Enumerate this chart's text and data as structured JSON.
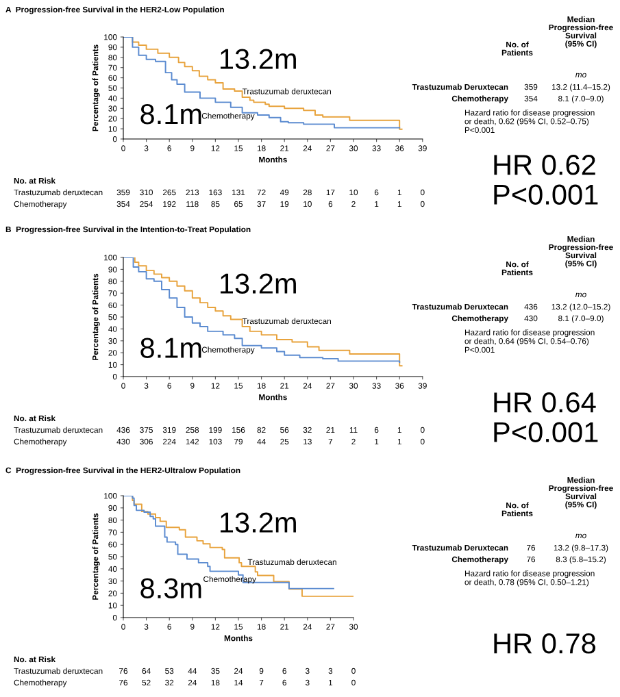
{
  "chart_data": [
    {
      "type": "step",
      "title": "A  Progression-free Survival in the HER2-Low Population",
      "xlabel": "Months",
      "ylabel": "Percentage of Patients",
      "xlim": [
        0,
        39
      ],
      "xticks": [
        0,
        3,
        6,
        9,
        12,
        15,
        18,
        21,
        24,
        27,
        30,
        33,
        36,
        39
      ],
      "ylim": [
        0,
        100
      ],
      "yticks": [
        0,
        10,
        20,
        30,
        40,
        50,
        60,
        70,
        80,
        90,
        100
      ],
      "series": [
        {
          "name": "Trastuzumab deruxtecan",
          "color": "#e8a33d",
          "x": [
            0,
            1.2,
            2,
            3,
            4.5,
            6,
            7.2,
            8,
            9,
            9.9,
            11,
            12,
            13,
            14.5,
            15.5,
            16.5,
            17,
            18.5,
            19,
            21,
            23.5,
            25,
            26,
            29.5,
            36,
            36.3
          ],
          "values": [
            100,
            95,
            92,
            88,
            84,
            80,
            75,
            71,
            67,
            61.5,
            58,
            55,
            49,
            47,
            41,
            38,
            36,
            34,
            32,
            30,
            28,
            23.5,
            21.7,
            18.3,
            9.6,
            9.6
          ]
        },
        {
          "name": "Chemotherapy",
          "color": "#5b8bd0",
          "x": [
            0,
            1.2,
            2,
            3,
            4.2,
            5.5,
            6.3,
            7,
            8,
            10,
            12,
            14,
            15.5,
            17.5,
            19,
            20.5,
            21.5,
            23.5,
            27.5,
            36
          ],
          "values": [
            100,
            90,
            82,
            78,
            76,
            65,
            58,
            53.7,
            46,
            40,
            36,
            31,
            25.7,
            23.5,
            21,
            17,
            16,
            14.5,
            11,
            11
          ]
        }
      ],
      "annotations": [
        "13.2m",
        "8.1m",
        "No. of\nPatients",
        "Median\nProgression-free\nSurvival\n(95% CI)",
        "mo",
        "Trastuzumab Deruxtecan",
        "Chemotherapy",
        "359",
        "354",
        "13.2 (11.4–15.2)",
        "8.1 (7.0–9.0)",
        "Hazard ratio for disease progression\nor death, 0.62 (95% CI, 0.52–0.75)\nP<0.001",
        "No. at Risk",
        "Trastuzumab deruxtecan",
        "Chemotherapy",
        "359 310 265 213 163 131 72 49 28 17 10 6 1 0",
        "354 254 192 118 85 65 37 19 10 6 2 1 1 0",
        "HR 0.62\nP<0.001"
      ]
    },
    {
      "type": "step",
      "title": "B  Progression-free Survival in the Intention-to-Treat Population",
      "xlabel": "Months",
      "ylabel": "Percentage of Patients",
      "xlim": [
        0,
        39
      ],
      "xticks": [
        0,
        3,
        6,
        9,
        12,
        15,
        18,
        21,
        24,
        27,
        30,
        33,
        36,
        39
      ],
      "ylim": [
        0,
        100
      ],
      "yticks": [
        0,
        10,
        20,
        30,
        40,
        50,
        60,
        70,
        80,
        90,
        100
      ],
      "series": [
        {
          "name": "Trastuzumab deruxtecan",
          "color": "#e8a33d",
          "x": [
            0,
            1.5,
            2,
            3,
            4,
            5,
            6,
            7,
            8,
            9,
            10,
            11,
            12,
            13,
            14,
            15.5,
            16.5,
            18,
            20,
            22,
            24,
            25.5,
            29.5,
            36,
            36.3
          ],
          "values": [
            100,
            96,
            93,
            89,
            86,
            83,
            80,
            76,
            72,
            66,
            62,
            58,
            55,
            51,
            48,
            42,
            38,
            35,
            31,
            29,
            25,
            22,
            19,
            9,
            9
          ]
        },
        {
          "name": "Chemotherapy",
          "color": "#5b8bd0",
          "x": [
            0,
            1.3,
            2,
            3,
            4,
            5,
            6,
            7,
            8,
            9,
            10,
            11,
            13,
            14.5,
            15.5,
            18,
            20,
            21,
            23,
            26,
            28,
            36
          ],
          "values": [
            100,
            92,
            88,
            82,
            80,
            73,
            66,
            58,
            50,
            45,
            42,
            38,
            35,
            32,
            26,
            24,
            21,
            18,
            16,
            15,
            13,
            12
          ]
        }
      ],
      "annotations": [
        "13.2m",
        "8.1m",
        "No. of\nPatients",
        "Median\nProgression-free\nSurvival\n(95% CI)",
        "mo",
        "Trastuzumab Deruxtecan",
        "Chemotherapy",
        "436",
        "430",
        "13.2 (12.0–15.2)",
        "8.1 (7.0–9.0)",
        "Hazard ratio for disease progression\nor death, 0.64 (95% CI, 0.54–0.76)\nP<0.001",
        "No. at Risk",
        "Trastuzumab deruxtecan",
        "Chemotherapy",
        "436 375 319 258 199 156 82 56 32 21 11 6 1 0",
        "430 306 224 142 103 79 44 25 13 7 2 1 1 0",
        "HR 0.64\nP<0.001"
      ]
    },
    {
      "type": "step",
      "title": "C  Progression-free Survival in the HER2-Ultralow Population",
      "xlabel": "Months",
      "ylabel": "Percentage of Patients",
      "xlim": [
        0,
        30
      ],
      "xticks": [
        0,
        3,
        6,
        9,
        12,
        15,
        18,
        21,
        24,
        27,
        30
      ],
      "ylim": [
        0,
        100
      ],
      "yticks": [
        0,
        10,
        20,
        30,
        40,
        50,
        60,
        70,
        80,
        90,
        100
      ],
      "series": [
        {
          "name": "Trastuzumab deruxtecan",
          "color": "#e8a33d",
          "x": [
            0,
            1.2,
            1.4,
            2.4,
            3.2,
            4.2,
            4.8,
            5.6,
            7.3,
            8.1,
            9.6,
            10.4,
            11.3,
            12.9,
            13.2,
            15.1,
            15.4,
            17.2,
            17.5,
            19.6,
            21.6,
            23.3,
            30
          ],
          "values": [
            100,
            96,
            93,
            87,
            85,
            82,
            79,
            74,
            72,
            66,
            63,
            60.5,
            57.5,
            55.9,
            49,
            45,
            42,
            37.5,
            34.5,
            29.5,
            23.5,
            17.5,
            17.5
          ]
        },
        {
          "name": "Chemotherapy",
          "color": "#5b8bd0",
          "x": [
            0,
            1.2,
            1.4,
            1.7,
            2.7,
            3.5,
            3.9,
            4.2,
            5.4,
            5.7,
            6.8,
            7.1,
            8.3,
            9.8,
            11,
            11.3,
            15,
            15.6,
            21.6,
            27.4
          ],
          "values": [
            100,
            98,
            92,
            88,
            86.5,
            83,
            81,
            75,
            66,
            62,
            60,
            52,
            48,
            45,
            42,
            38,
            35,
            28.8,
            23.8,
            23.8
          ]
        }
      ],
      "annotations": [
        "13.2m",
        "8.3m",
        "No. of\nPatients",
        "Median\nProgression-free\nSurvival\n(95% CI)",
        "mo",
        "Trastuzumab Deruxtecan",
        "Chemotherapy",
        "76",
        "76",
        "13.2 (9.8–17.3)",
        "8.3 (5.8–15.2)",
        "Hazard ratio for disease progression\nor death, 0.78 (95% CI, 0.50–1.21)",
        "No. at Risk",
        "Trastuzumab deruxtecan",
        "Chemotherapy",
        "76 64 53 44 35 24 9 6 3 3 0",
        "76 52 32 24 18 14 7 6 3 1 0",
        "HR 0.78"
      ]
    }
  ]
}
